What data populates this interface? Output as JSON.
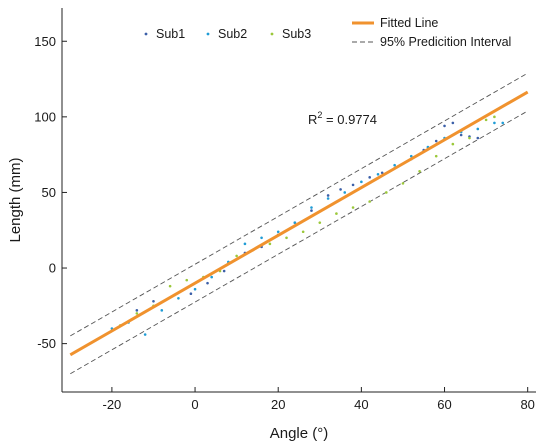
{
  "chart_data": {
    "type": "scatter",
    "xlabel": "Angle (°)",
    "ylabel": "Length (mm)",
    "xlim": [
      -32,
      82
    ],
    "ylim": [
      -82,
      172
    ],
    "xticks": [
      -20,
      0,
      20,
      40,
      60,
      80
    ],
    "yticks": [
      -50,
      0,
      50,
      100,
      150
    ],
    "grid": false,
    "legend_position": "top",
    "annotation": {
      "prefix": "R",
      "sup": "2",
      "suffix": " = 0.9774"
    },
    "fit": {
      "name": "Fitted Line",
      "slope": 1.58,
      "intercept": -10,
      "x_range": [
        -30,
        80
      ],
      "color": "#f0922e"
    },
    "prediction_interval": {
      "name": "95% Predicition Interval",
      "offset": 12.5,
      "color": "#555555"
    },
    "series": [
      {
        "name": "Sub1",
        "color": "#3b5fa8",
        "points": [
          [
            -14,
            -28
          ],
          [
            -10,
            -22
          ],
          [
            -5,
            -18
          ],
          [
            -1,
            -17
          ],
          [
            3,
            -10
          ],
          [
            7,
            -2
          ],
          [
            12,
            10
          ],
          [
            16,
            14
          ],
          [
            20,
            22
          ],
          [
            24,
            30
          ],
          [
            28,
            38
          ],
          [
            32,
            48
          ],
          [
            35,
            52
          ],
          [
            38,
            55
          ],
          [
            42,
            60
          ],
          [
            45,
            63
          ],
          [
            48,
            66
          ],
          [
            52,
            72
          ],
          [
            55,
            78
          ],
          [
            58,
            84
          ],
          [
            60,
            94
          ],
          [
            62,
            96
          ],
          [
            64,
            88
          ],
          [
            66,
            87
          ],
          [
            68,
            86
          ]
        ]
      },
      {
        "name": "Sub2",
        "color": "#1f9cd6",
        "points": [
          [
            -20,
            -40
          ],
          [
            -16,
            -36
          ],
          [
            -12,
            -44
          ],
          [
            -8,
            -28
          ],
          [
            -4,
            -20
          ],
          [
            0,
            -14
          ],
          [
            4,
            -6
          ],
          [
            8,
            4
          ],
          [
            12,
            16
          ],
          [
            16,
            20
          ],
          [
            20,
            24
          ],
          [
            24,
            30
          ],
          [
            28,
            40
          ],
          [
            32,
            46
          ],
          [
            36,
            50
          ],
          [
            40,
            57
          ],
          [
            44,
            62
          ],
          [
            48,
            68
          ],
          [
            52,
            74
          ],
          [
            56,
            80
          ],
          [
            60,
            86
          ],
          [
            64,
            90
          ],
          [
            68,
            92
          ],
          [
            72,
            96
          ],
          [
            74,
            96
          ]
        ]
      },
      {
        "name": "Sub3",
        "color": "#9bc83a",
        "points": [
          [
            -18,
            -38
          ],
          [
            -14,
            -30
          ],
          [
            -10,
            -25
          ],
          [
            -6,
            -12
          ],
          [
            -2,
            -8
          ],
          [
            2,
            -6
          ],
          [
            6,
            -2
          ],
          [
            10,
            8
          ],
          [
            14,
            12
          ],
          [
            18,
            16
          ],
          [
            22,
            20
          ],
          [
            26,
            24
          ],
          [
            30,
            30
          ],
          [
            34,
            36
          ],
          [
            38,
            40
          ],
          [
            42,
            44
          ],
          [
            46,
            50
          ],
          [
            50,
            56
          ],
          [
            54,
            64
          ],
          [
            58,
            74
          ],
          [
            62,
            82
          ],
          [
            66,
            86
          ],
          [
            70,
            98
          ],
          [
            72,
            100
          ]
        ]
      }
    ]
  }
}
